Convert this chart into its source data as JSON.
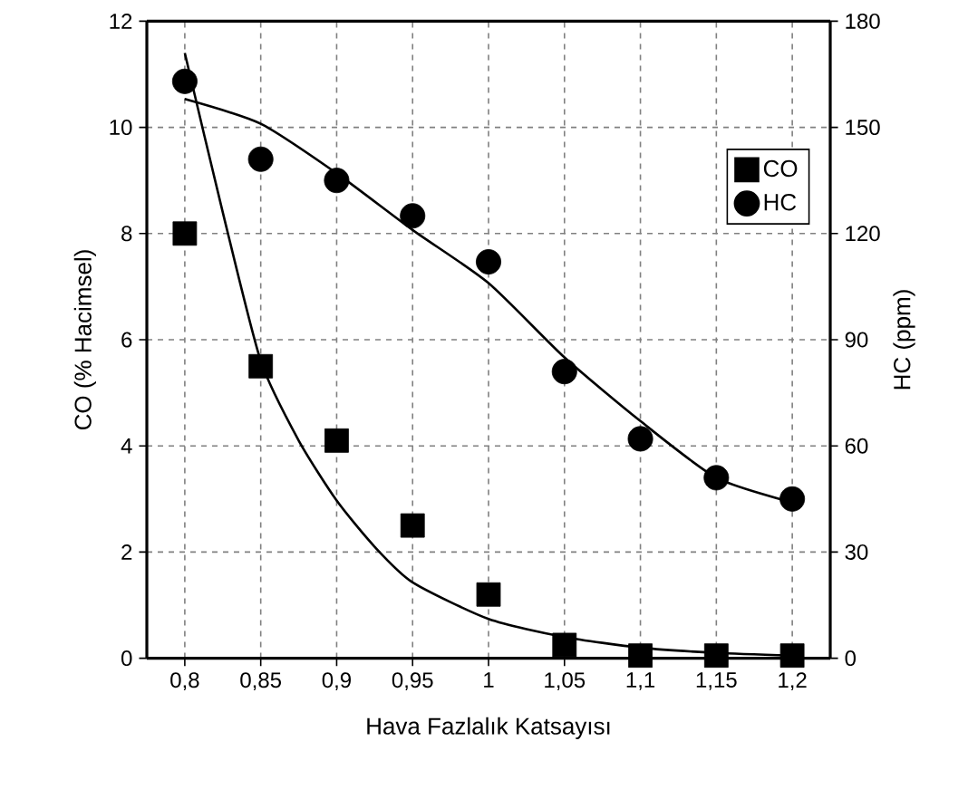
{
  "chart_data": {
    "type": "scatter",
    "xlabel": "Hava Fazlalık Katsayısı",
    "ylabel": "CO (% Hacimsel)",
    "y2label": "HC (ppm)",
    "xlim": [
      0.775,
      1.225
    ],
    "xticks": [
      {
        "value": 0.8,
        "label": "0,8"
      },
      {
        "value": 0.85,
        "label": "0,85"
      },
      {
        "value": 0.9,
        "label": "0,9"
      },
      {
        "value": 0.95,
        "label": "0,95"
      },
      {
        "value": 1,
        "label": "1"
      },
      {
        "value": 1.05,
        "label": "1,05"
      },
      {
        "value": 1.1,
        "label": "1,1"
      },
      {
        "value": 1.15,
        "label": "1,15"
      },
      {
        "value": 1.2,
        "label": "1,2"
      }
    ],
    "ylim": [
      0,
      12
    ],
    "yticks": [
      0,
      2,
      4,
      6,
      8,
      10,
      12
    ],
    "y2lim": [
      0,
      180
    ],
    "y2ticks": [
      0,
      30,
      60,
      90,
      120,
      150,
      180
    ],
    "grid": true,
    "legend": "top right",
    "x": [
      0.8,
      0.85,
      0.9,
      0.95,
      1,
      1.05,
      1.1,
      1.15,
      1.2
    ],
    "series": [
      {
        "name": "CO",
        "color": "#000000",
        "marker": "square",
        "values": [
          8.0,
          5.5,
          4.1,
          2.5,
          1.2,
          0.25,
          0.05,
          0.05,
          0.05
        ]
      },
      {
        "name": "HC",
        "color": "#000000",
        "marker": "circle",
        "axis": "y2",
        "values": [
          163,
          141,
          135,
          125,
          112,
          81,
          62,
          51,
          45
        ]
      },
      {
        "type": "line",
        "color": "#000000",
        "marker": "none",
        "x": [
          0.8,
          0.825,
          0.85,
          0.875,
          0.9,
          0.925,
          0.95,
          1,
          1.05,
          1.1,
          1.15,
          1.2
        ],
        "values": [
          11.4,
          8.4,
          5.6,
          4.1,
          2.97,
          2.1,
          1.43,
          0.74,
          0.4,
          0.2,
          0.1,
          0.05
        ]
      },
      {
        "type": "line",
        "color": "#000000",
        "marker": "none",
        "axis": "y2",
        "x": [
          0.8,
          0.85,
          0.9,
          0.95,
          1,
          1.05,
          1.1,
          1.15,
          1.2
        ],
        "values": [
          158,
          151,
          137,
          121,
          106,
          85,
          67,
          51,
          44
        ]
      }
    ]
  }
}
